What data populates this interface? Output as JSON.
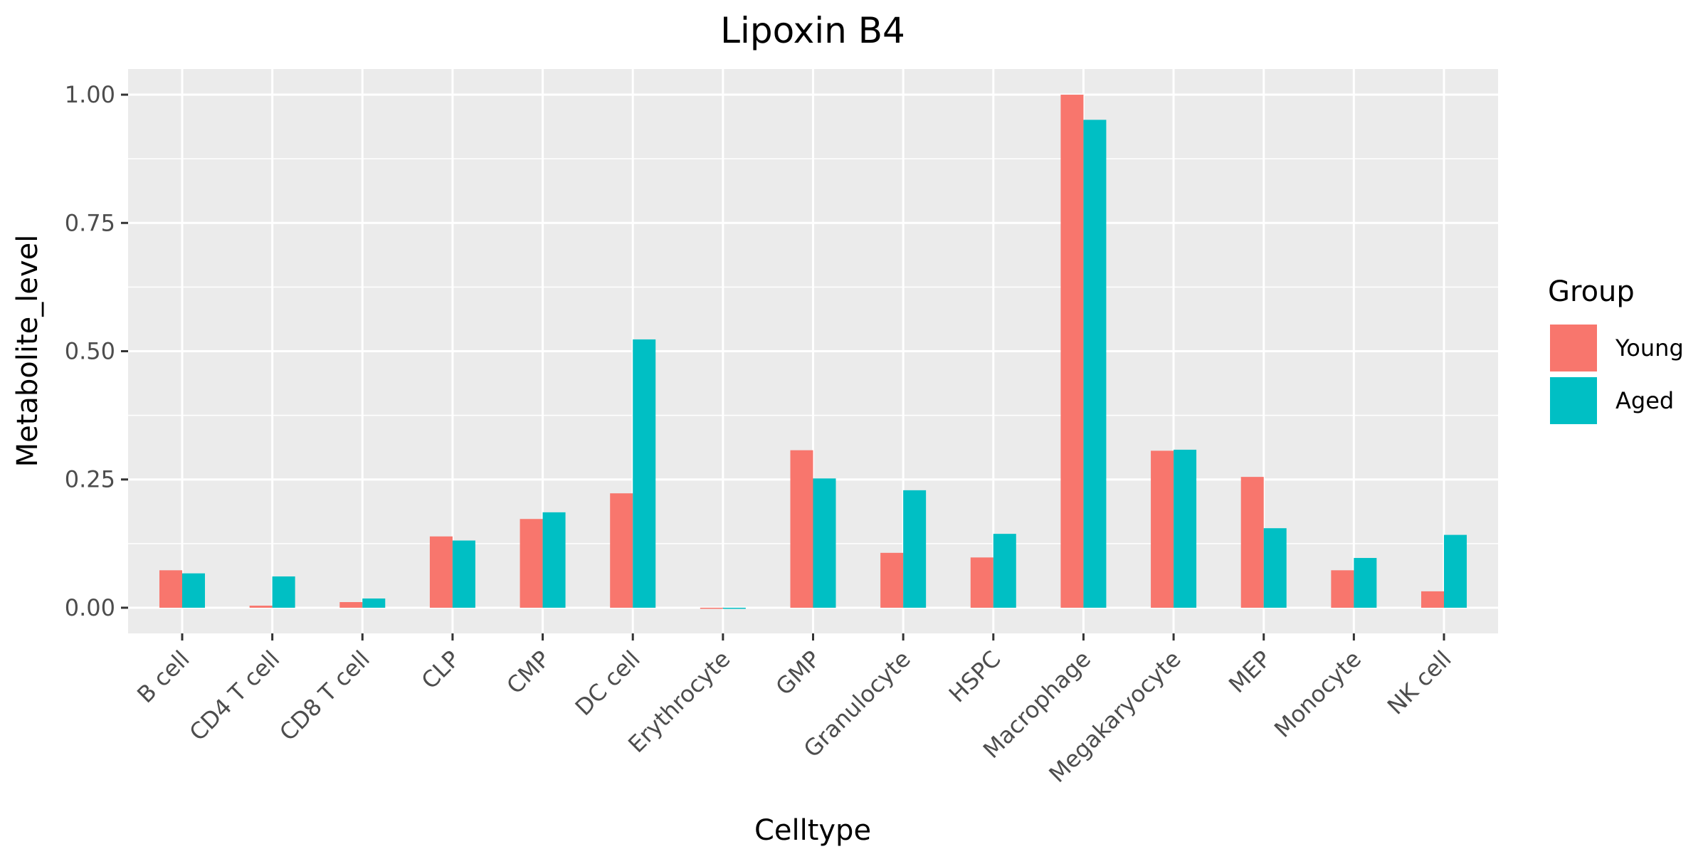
{
  "chart_data": {
    "type": "bar",
    "title": "Lipoxin B4",
    "xlabel": "Celltype",
    "ylabel": "Metabolite_level",
    "ylim": [
      -0.05,
      1.05
    ],
    "yticks": [
      0.0,
      0.25,
      0.5,
      0.75,
      1.0
    ],
    "ytick_labels": [
      "0.00",
      "0.25",
      "0.50",
      "0.75",
      "1.00"
    ],
    "grid": true,
    "legend": {
      "title": "Group",
      "position": "right"
    },
    "categories": [
      "B cell",
      "CD4 T cell",
      "CD8 T cell",
      "CLP",
      "CMP",
      "DC cell",
      "Erythrocyte",
      "GMP",
      "Granulocyte",
      "HSPC",
      "Macrophage",
      "Megakaryocyte",
      "MEP",
      "Monocyte",
      "NK cell"
    ],
    "series": [
      {
        "name": "Young",
        "color": "#F8766D",
        "values": [
          0.073,
          0.004,
          0.011,
          0.139,
          0.173,
          0.223,
          0.0,
          0.307,
          0.107,
          0.098,
          1.0,
          0.306,
          0.255,
          0.073,
          0.032
        ]
      },
      {
        "name": "Aged",
        "color": "#00BFC4",
        "values": [
          0.067,
          0.061,
          0.018,
          0.131,
          0.186,
          0.523,
          -0.002,
          0.252,
          0.229,
          0.144,
          0.951,
          0.308,
          0.155,
          0.097,
          0.142
        ]
      }
    ],
    "colors": {
      "panel_background": "#EBEBEB",
      "gridline": "#FFFFFF",
      "tick_text": "#4D4D4D"
    }
  }
}
